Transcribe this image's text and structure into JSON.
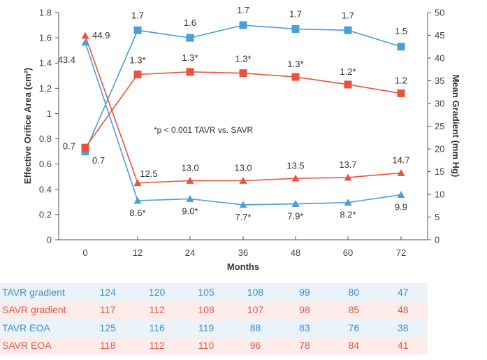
{
  "chart_data": {
    "type": "line",
    "xlabel": "Months",
    "ylabel_left": "Effective Orifice Area (cm²)",
    "ylabel_right": "Mean Gradient (mm Hg)",
    "x": [
      0,
      12,
      24,
      36,
      48,
      60,
      72
    ],
    "x_ticks": [
      "0",
      "12",
      "24",
      "36",
      "48",
      "60",
      "72"
    ],
    "y_left_range": [
      0,
      1.8
    ],
    "y_left_ticks": [
      "0",
      "0.2",
      "0.4",
      "0.6",
      "0.8",
      "1",
      "1.2",
      "1.4",
      "1.6",
      "1.8"
    ],
    "y_right_range": [
      0,
      50
    ],
    "y_right_ticks": [
      "0",
      "5",
      "10",
      "15",
      "20",
      "25",
      "30",
      "35",
      "40",
      "45",
      "50"
    ],
    "annotation": "*p < 0.001 TAVR vs. SAVR",
    "grid": false,
    "series": [
      {
        "axis": "left",
        "marker": "square",
        "color": "#4a9fd8",
        "values": [
          0.7,
          1.66,
          1.6,
          1.7,
          1.67,
          1.66,
          1.53
        ],
        "labels": [
          "0.7",
          "1.7",
          "1.6",
          "1.7",
          "1.7",
          "1.7",
          "1.5"
        ]
      },
      {
        "axis": "left",
        "marker": "square",
        "color": "#e9533d",
        "values": [
          0.73,
          1.31,
          1.33,
          1.32,
          1.29,
          1.23,
          1.16
        ],
        "labels": [
          "0.7",
          "1.3*",
          "1.3*",
          "1.3*",
          "1.3*",
          "1.2*",
          "1.2"
        ]
      },
      {
        "axis": "right",
        "marker": "triangle",
        "color": "#e9533d",
        "values": [
          44.9,
          12.5,
          13.0,
          13.0,
          13.5,
          13.7,
          14.7
        ],
        "labels": [
          "44.9",
          "12.5",
          "13.0",
          "13.0",
          "13.5",
          "13.7",
          "14.7"
        ]
      },
      {
        "axis": "right",
        "marker": "triangle",
        "color": "#4a9fd8",
        "values": [
          43.4,
          8.6,
          9.0,
          7.7,
          7.9,
          8.2,
          9.9
        ],
        "labels": [
          "43.4",
          "8.6*",
          "9.0*",
          "7.7*",
          "7.9*",
          "8.2*",
          "9.9"
        ]
      }
    ],
    "numbers_at_risk": [
      {
        "label": "TAVR gradient",
        "group": "tavr",
        "values": [
          "124",
          "120",
          "105",
          "108",
          "99",
          "80",
          "47"
        ]
      },
      {
        "label": "SAVR gradient",
        "group": "savr",
        "values": [
          "117",
          "112",
          "108",
          "107",
          "98",
          "85",
          "48"
        ]
      },
      {
        "label": "TAVR EOA",
        "group": "tavr",
        "values": [
          "125",
          "116",
          "119",
          "88",
          "83",
          "76",
          "38"
        ]
      },
      {
        "label": "SAVR EOA",
        "group": "savr",
        "values": [
          "118",
          "112",
          "110",
          "96",
          "78",
          "84",
          "41"
        ]
      }
    ]
  }
}
